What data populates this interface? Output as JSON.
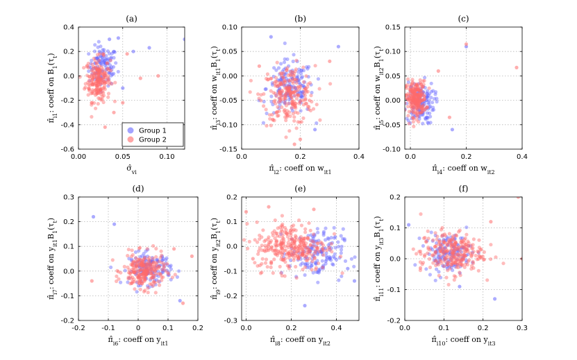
{
  "colors": {
    "group1": "#6666ff",
    "group2": "#ff6b6b"
  },
  "legend": {
    "entries": [
      "Group 1",
      "Group 2"
    ],
    "placement": "bottom-right of panel (a)"
  },
  "chart_data": [
    {
      "type": "scatter",
      "title": "(a)",
      "grid": true,
      "xlabel": {
        "base": "σ̂",
        "sub": "vi",
        "rest": ""
      },
      "ylabel": {
        "base": "π̂",
        "sub": "i1",
        "rest": ": coeff on B",
        "sub2": "1",
        "tail": "(τ",
        "sub3": "t",
        "end": ")"
      },
      "xlim": [
        0,
        0.12
      ],
      "ylim": [
        -0.6,
        0.4
      ],
      "xticks": [
        0,
        0.05,
        0.1
      ],
      "xticklabels": [
        "0.00",
        "0.05",
        "0.10"
      ],
      "yticks": [
        -0.6,
        -0.4,
        -0.2,
        0,
        0.2,
        0.4
      ],
      "yticklabels": [
        "-0.6",
        "-0.4",
        "-0.2",
        "0.0",
        "0.2",
        "0.4"
      ],
      "series": [
        {
          "name": "Group 1",
          "center": [
            0.028,
            0.08
          ],
          "spread": [
            0.008,
            0.08
          ],
          "n": 110,
          "extra": [
            [
              0.045,
              0.31
            ],
            [
              0.035,
              0.3
            ],
            [
              0.062,
              0.2
            ],
            [
              0.08,
              0.23
            ],
            [
              0.12,
              0.3
            ],
            [
              0.05,
              -0.1
            ]
          ]
        },
        {
          "name": "Group 2",
          "center": [
            0.022,
            -0.03
          ],
          "spread": [
            0.007,
            0.09
          ],
          "n": 200,
          "extra": [
            [
              0.03,
              -0.42
            ],
            [
              0.04,
              -0.3
            ],
            [
              0.055,
              0.18
            ],
            [
              0.07,
              -0.02
            ],
            [
              0.09,
              0.0
            ],
            [
              0.05,
              -0.22
            ]
          ]
        }
      ]
    },
    {
      "type": "scatter",
      "title": "(b)",
      "grid": true,
      "xlabel": {
        "base": "π̂",
        "sub": "i2",
        "rest": ": coeff on w",
        "sub2": "it1"
      },
      "ylabel": {
        "base": "π̂",
        "sub": "i3",
        "rest": ": coeff on w",
        "sub2": "it1",
        "tail": "B",
        "sub3": "1",
        "end": "(τ",
        "sub4": "t",
        "end2": ")"
      },
      "xlim": [
        0,
        0.4
      ],
      "ylim": [
        -0.15,
        0.1
      ],
      "xticks": [
        0,
        0.2,
        0.4
      ],
      "xticklabels": [
        "0.0",
        "0.2",
        "0.4"
      ],
      "yticks": [
        -0.15,
        -0.1,
        -0.05,
        0,
        0.05,
        0.1
      ],
      "yticklabels": [
        "-0.15",
        "-0.10",
        "-0.05",
        "0.00",
        "0.05",
        "0.10"
      ],
      "series": [
        {
          "name": "Group 1",
          "center": [
            0.165,
            -0.025
          ],
          "spread": [
            0.04,
            0.028
          ],
          "n": 150,
          "extra": [
            [
              0.1,
              0.08
            ],
            [
              0.33,
              0.06
            ],
            [
              0.25,
              -0.11
            ]
          ]
        },
        {
          "name": "Group 2",
          "center": [
            0.16,
            -0.04
          ],
          "spread": [
            0.045,
            0.03
          ],
          "n": 230,
          "extra": [
            [
              0.18,
              -0.14
            ],
            [
              0.2,
              -0.13
            ],
            [
              0.06,
              0.02
            ],
            [
              0.3,
              0.03
            ]
          ]
        }
      ]
    },
    {
      "type": "scatter",
      "title": "(c)",
      "grid": true,
      "xlabel": {
        "base": "π̂",
        "sub": "i4",
        "rest": ": coeff on w",
        "sub2": "it2"
      },
      "ylabel": {
        "base": "π̂",
        "sub": "i5",
        "rest": ": coeff on w",
        "sub2": "it2",
        "tail": "B",
        "sub3": "1",
        "end": "(τ",
        "sub4": "t",
        "end2": ")"
      },
      "xlim": [
        -0.02,
        0.4
      ],
      "ylim": [
        -0.1,
        0.15
      ],
      "xticks": [
        0,
        0.2,
        0.4
      ],
      "xticklabels": [
        "0.0",
        "0.2",
        "0.4"
      ],
      "yticks": [
        -0.1,
        -0.05,
        0,
        0.05,
        0.1,
        0.15
      ],
      "yticklabels": [
        "-0.10",
        "-0.05",
        "0.00",
        "0.05",
        "0.10",
        "0.15"
      ],
      "series": [
        {
          "name": "Group 1",
          "center": [
            0.035,
            -0.005
          ],
          "spread": [
            0.025,
            0.022
          ],
          "n": 130,
          "extra": [
            [
              0.2,
              0.11
            ],
            [
              0.15,
              -0.06
            ]
          ]
        },
        {
          "name": "Group 2",
          "center": [
            0.02,
            0.003
          ],
          "spread": [
            0.018,
            0.018
          ],
          "n": 240,
          "extra": [
            [
              0.38,
              0.067
            ],
            [
              0.2,
              0.115
            ],
            [
              0.14,
              -0.035
            ],
            [
              0.1,
              0.06
            ]
          ]
        }
      ]
    },
    {
      "type": "scatter",
      "title": "(d)",
      "grid": true,
      "xlabel": {
        "base": "π̂",
        "sub": "i6",
        "rest": ": coeff on y",
        "sub2": "it1"
      },
      "ylabel": {
        "base": "π̂",
        "sub": "i7",
        "rest": ": coeff on y",
        "sub2": "it1",
        "tail": "B",
        "sub3": "1",
        "end": "(τ",
        "sub4": "t",
        "end2": ")"
      },
      "xlim": [
        -0.2,
        0.2
      ],
      "ylim": [
        -0.2,
        0.3
      ],
      "xticks": [
        -0.2,
        -0.1,
        0,
        0.1,
        0.2
      ],
      "xticklabels": [
        "-0.2",
        "-0.1",
        "0",
        "0.1",
        "0.2"
      ],
      "yticks": [
        -0.2,
        -0.1,
        0,
        0.1,
        0.2,
        0.3
      ],
      "yticklabels": [
        "-0.2",
        "-0.1",
        "0.0",
        "0.1",
        "0.2",
        "0.3"
      ],
      "series": [
        {
          "name": "Group 1",
          "center": [
            0.04,
            0.01
          ],
          "spread": [
            0.035,
            0.032
          ],
          "n": 140,
          "extra": [
            [
              -0.15,
              0.22
            ],
            [
              -0.08,
              0.19
            ],
            [
              0.14,
              -0.12
            ]
          ]
        },
        {
          "name": "Group 2",
          "center": [
            0.02,
            0.0
          ],
          "spread": [
            0.035,
            0.035
          ],
          "n": 230,
          "extra": [
            [
              -0.155,
              -0.04
            ],
            [
              0.15,
              -0.13
            ],
            [
              0.12,
              0.09
            ],
            [
              0.18,
              0.06
            ]
          ]
        }
      ]
    },
    {
      "type": "scatter",
      "title": "(e)",
      "grid": true,
      "xlabel": {
        "base": "π̂",
        "sub": "i8",
        "rest": ": coeff on y",
        "sub2": "it2"
      },
      "ylabel": {
        "base": "π̂",
        "sub": "i9",
        "rest": ": coeff on y",
        "sub2": "it2",
        "tail": "B",
        "sub3": "1",
        "end": "(τ",
        "sub4": "t",
        "end2": ")"
      },
      "xlim": [
        -0.02,
        0.5
      ],
      "ylim": [
        -0.3,
        0.2
      ],
      "xticks": [
        0,
        0.2,
        0.4
      ],
      "xticklabels": [
        "0.0",
        "0.2",
        "0.4"
      ],
      "yticks": [
        -0.3,
        -0.2,
        -0.1,
        0,
        0.1,
        0.2
      ],
      "yticklabels": [
        "-0.3",
        "-0.2",
        "-0.1",
        "0.0",
        "0.1",
        "0.2"
      ],
      "series": [
        {
          "name": "Group 1",
          "center": [
            0.31,
            -0.03
          ],
          "spread": [
            0.06,
            0.05
          ],
          "n": 150,
          "extra": [
            [
              0.26,
              -0.24
            ],
            [
              0.45,
              -0.09
            ],
            [
              0.48,
              -0.14
            ]
          ]
        },
        {
          "name": "Group 2",
          "center": [
            0.2,
            0.0
          ],
          "spread": [
            0.08,
            0.05
          ],
          "n": 300,
          "extra": [
            [
              0.0,
              0.14
            ],
            [
              0.03,
              -0.05
            ],
            [
              0.1,
              0.16
            ],
            [
              0.3,
              0.15
            ]
          ]
        }
      ]
    },
    {
      "type": "scatter",
      "title": "(f)",
      "grid": true,
      "xlabel": {
        "base": "π̂",
        "sub": "i10",
        "rest": ": coeff on y",
        "sub2": "it3"
      },
      "ylabel": {
        "base": "π̂",
        "sub": "i11",
        "rest": ": coeff on y",
        "sub2": "it3",
        "tail": "B",
        "sub3": "1",
        "end": "(τ",
        "sub4": "t",
        "end2": ")"
      },
      "xlim": [
        0,
        0.3
      ],
      "ylim": [
        -0.2,
        0.2
      ],
      "xticks": [
        0,
        0.1,
        0.2,
        0.3
      ],
      "xticklabels": [
        "0.0",
        "0.1",
        "0.2",
        "0.3"
      ],
      "yticks": [
        -0.2,
        -0.1,
        0,
        0.1,
        0.2
      ],
      "yticklabels": [
        "-0.2",
        "-0.1",
        "0.0",
        "0.1",
        "0.2"
      ],
      "series": [
        {
          "name": "Group 1",
          "center": [
            0.11,
            0.02
          ],
          "spread": [
            0.03,
            0.03
          ],
          "n": 140,
          "extra": [
            [
              0.23,
              -0.13
            ],
            [
              0.14,
              -0.09
            ],
            [
              0.01,
              0.11
            ]
          ]
        },
        {
          "name": "Group 2",
          "center": [
            0.12,
            0.02
          ],
          "spread": [
            0.04,
            0.035
          ],
          "n": 260,
          "extra": [
            [
              0.29,
              0.2
            ],
            [
              0.3,
              0.0
            ],
            [
              0.22,
              0.12
            ],
            [
              0.04,
              -0.03
            ]
          ]
        }
      ]
    }
  ]
}
